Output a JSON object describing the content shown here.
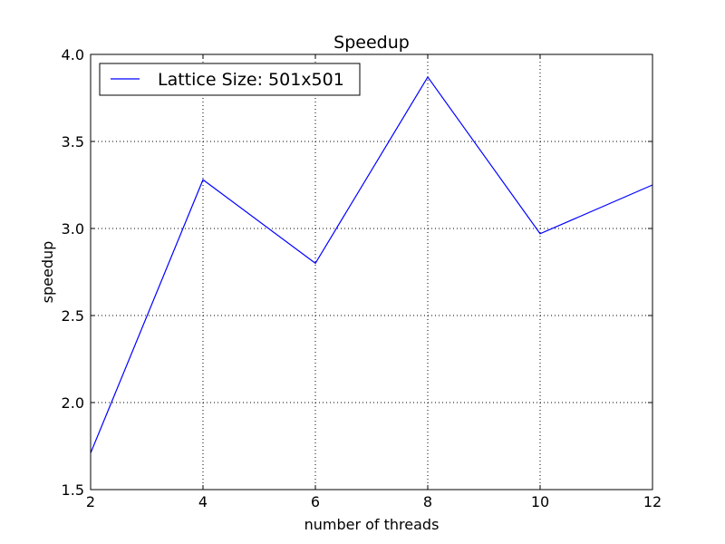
{
  "chart_data": {
    "type": "line",
    "title": "Speedup",
    "xlabel": "number of threads",
    "ylabel": "speedup",
    "xlim": [
      2,
      12
    ],
    "ylim": [
      1.5,
      4.0
    ],
    "xticks": [
      2,
      4,
      6,
      8,
      10,
      12
    ],
    "yticks": [
      1.5,
      2.0,
      2.5,
      3.0,
      3.5,
      4.0
    ],
    "xtick_labels": [
      "2",
      "4",
      "6",
      "8",
      "10",
      "12"
    ],
    "ytick_labels": [
      "1.5",
      "2.0",
      "2.5",
      "3.0",
      "3.5",
      "4.0"
    ],
    "grid": true,
    "legend_position": "top-left",
    "series": [
      {
        "name": "Lattice Size: 501x501",
        "color": "#0000ff",
        "x": [
          2,
          4,
          6,
          8,
          10,
          12
        ],
        "y": [
          1.71,
          3.28,
          2.8,
          3.87,
          2.97,
          3.25
        ]
      }
    ]
  }
}
